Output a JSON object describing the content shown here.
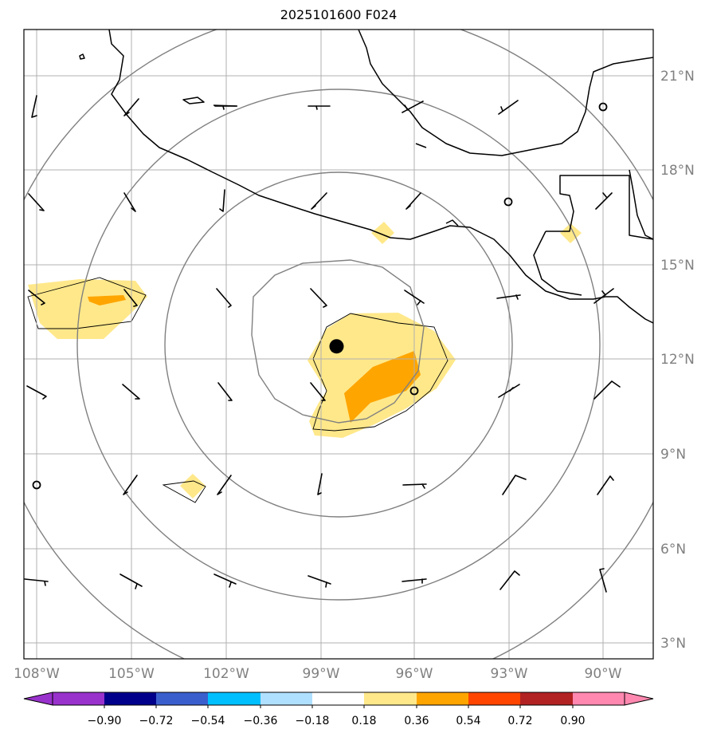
{
  "title": "2025101600 F024",
  "map": {
    "lon_ticks": [
      "108°W",
      "105°W",
      "102°W",
      "99°W",
      "96°W",
      "93°W",
      "90°W"
    ],
    "lat_ticks": [
      "3°N",
      "6°N",
      "9°N",
      "12°N",
      "15°N",
      "18°N",
      "21°N"
    ],
    "storm_center": {
      "lon": -98.5,
      "lat": 12.4
    }
  },
  "colorbar": {
    "levels": [
      "−0.90",
      "−0.72",
      "−0.54",
      "−0.36",
      "−0.18",
      "0.18",
      "0.36",
      "0.54",
      "0.72",
      "0.90"
    ],
    "colors": [
      "#9932cc",
      "#00008b",
      "#3a5fcd",
      "#00bfff",
      "#b0e0ff",
      "#ffffff",
      "#ffe88a",
      "#ffa500",
      "#ff4500",
      "#b22222",
      "#ff88b0"
    ]
  },
  "colors": {
    "grid": "#b0b0b0",
    "range_ring": "#808080",
    "coast": "#000000",
    "fill_low": "#ffe88a",
    "fill_mid": "#ffa500"
  }
}
